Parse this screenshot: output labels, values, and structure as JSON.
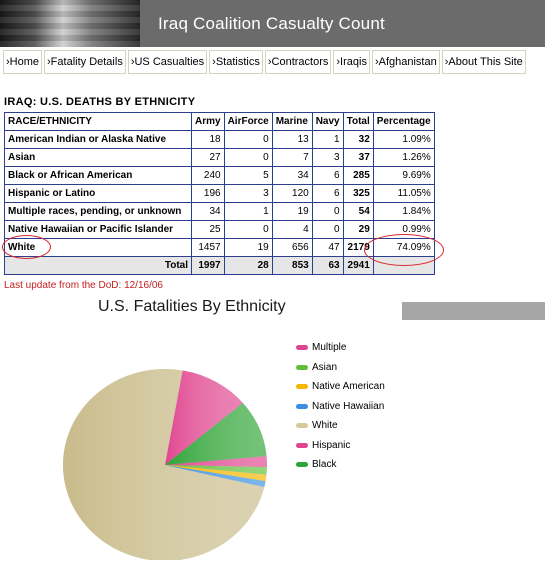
{
  "banner": {
    "title": "Iraq Coalition Casualty Count"
  },
  "nav": [
    {
      "label": "›Home"
    },
    {
      "label": "›Fatality Details"
    },
    {
      "label": "›US Casualties"
    },
    {
      "label": "›Statistics"
    },
    {
      "label": "›Contractors"
    },
    {
      "label": "›Iraqis"
    },
    {
      "label": "›Afghanistan"
    },
    {
      "label": "›About This Site"
    }
  ],
  "section_title": "IRAQ: U.S. DEATHS BY ETHNICITY",
  "table": {
    "headers": [
      "RACE/ETHNICITY",
      "Army",
      "AirForce",
      "Marine",
      "Navy",
      "Total",
      "Percentage"
    ],
    "rows": [
      {
        "name": "American Indian or Alaska Native",
        "army": "18",
        "airforce": "0",
        "marine": "13",
        "navy": "1",
        "total": "32",
        "pct": "1.09%"
      },
      {
        "name": "Asian",
        "army": "27",
        "airforce": "0",
        "marine": "7",
        "navy": "3",
        "total": "37",
        "pct": "1.26%"
      },
      {
        "name": "Black or African American",
        "army": "240",
        "airforce": "5",
        "marine": "34",
        "navy": "6",
        "total": "285",
        "pct": "9.69%"
      },
      {
        "name": "Hispanic or Latino",
        "army": "196",
        "airforce": "3",
        "marine": "120",
        "navy": "6",
        "total": "325",
        "pct": "11.05%"
      },
      {
        "name": "Multiple races, pending, or unknown",
        "army": "34",
        "airforce": "1",
        "marine": "19",
        "navy": "0",
        "total": "54",
        "pct": "1.84%"
      },
      {
        "name": "Native Hawaiian or Pacific Islander",
        "army": "25",
        "airforce": "0",
        "marine": "4",
        "navy": "0",
        "total": "29",
        "pct": "0.99%"
      },
      {
        "name": "White",
        "army": "1457",
        "airforce": "19",
        "marine": "656",
        "navy": "47",
        "total": "2179",
        "pct": "74.09%"
      }
    ],
    "total_row": {
      "label": "Total",
      "army": "1997",
      "airforce": "28",
      "marine": "853",
      "navy": "63",
      "total": "2941"
    }
  },
  "last_update": "Last update from the DoD: 12/16/06",
  "chart_data": {
    "type": "pie",
    "title": "U.S. Fatalities By Ethnicity",
    "legend_position": "right",
    "slices": [
      {
        "name": "White",
        "value": 2179,
        "color": "#c9bb8a"
      },
      {
        "name": "Hispanic",
        "value": 325,
        "color": "#e0468f"
      },
      {
        "name": "Black",
        "value": 285,
        "color": "#2fa436"
      },
      {
        "name": "Multiple",
        "value": 54,
        "color": "#e0468f"
      },
      {
        "name": "Asian",
        "value": 37,
        "color": "#5fbf3a"
      },
      {
        "name": "Native American",
        "value": 32,
        "color": "#f5b700"
      },
      {
        "name": "Native Hawaiian",
        "value": 29,
        "color": "#3a8fe0"
      }
    ],
    "legend": [
      {
        "name": "Multiple",
        "color": "#e0468f"
      },
      {
        "name": "Asian",
        "color": "#5fbf3a"
      },
      {
        "name": "Native American",
        "color": "#f5b700"
      },
      {
        "name": "Native Hawaiian",
        "color": "#3a8fe0"
      },
      {
        "name": "White",
        "color": "#d8c99b"
      },
      {
        "name": "Hispanic",
        "color": "#e0468f"
      },
      {
        "name": "Black",
        "color": "#2fa436"
      }
    ]
  }
}
